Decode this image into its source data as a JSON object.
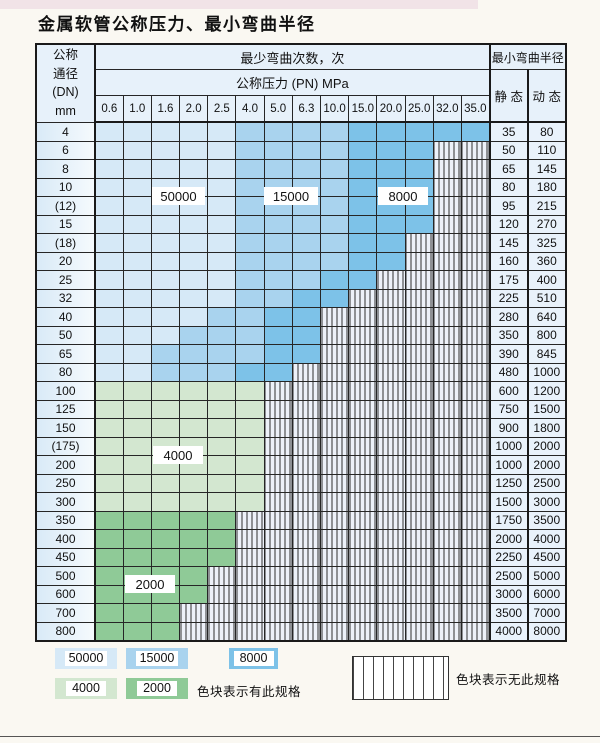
{
  "title": "金属软管公称压力、最小弯曲半径",
  "table": {
    "header": {
      "dn_lines": [
        "公称",
        "通径",
        "(DN)",
        "mm"
      ],
      "bend_cycles_label": "最少弯曲次数，次",
      "pressure_label": "公称压力 (PN) MPa",
      "pressure_columns": [
        "0.6",
        "1.0",
        "1.6",
        "2.0",
        "2.5",
        "4.0",
        "5.0",
        "6.3",
        "10.0",
        "15.0",
        "20.0",
        "25.0",
        "32.0",
        "35.0"
      ],
      "bend_radius_label": "最小弯曲半径",
      "static_label": "静 态",
      "dynamic_label": "动 态"
    },
    "zone_colors": {
      "50000": "#d6e9f7",
      "15000": "#a9d3ee",
      "8000": "#7dc2e8",
      "4000": "#d3e7d0",
      "2000": "#8fca97",
      "none": "#edf1f9"
    },
    "overlay_labels": {
      "50000": "50000",
      "15000": "15000",
      "8000": "8000",
      "4000": "4000",
      "2000": "2000"
    },
    "rows": [
      {
        "dn": "4",
        "zones": [
          "50000",
          "50000",
          "50000",
          "50000",
          "50000",
          "15000",
          "15000",
          "15000",
          "15000",
          "8000",
          "8000",
          "8000",
          "8000",
          "8000"
        ],
        "static": "35",
        "dynamic": "80"
      },
      {
        "dn": "6",
        "zones": [
          "50000",
          "50000",
          "50000",
          "50000",
          "50000",
          "15000",
          "15000",
          "15000",
          "15000",
          "8000",
          "8000",
          "8000",
          "none",
          "none"
        ],
        "static": "50",
        "dynamic": "110"
      },
      {
        "dn": "8",
        "zones": [
          "50000",
          "50000",
          "50000",
          "50000",
          "50000",
          "15000",
          "15000",
          "15000",
          "15000",
          "8000",
          "8000",
          "8000",
          "none",
          "none"
        ],
        "static": "65",
        "dynamic": "145"
      },
      {
        "dn": "10",
        "zones": [
          "50000",
          "50000",
          "50000",
          "50000",
          "50000",
          "15000",
          "15000",
          "15000",
          "15000",
          "8000",
          "8000",
          "8000",
          "none",
          "none"
        ],
        "static": "80",
        "dynamic": "180"
      },
      {
        "dn": "(12)",
        "zones": [
          "50000",
          "50000",
          "50000",
          "50000",
          "50000",
          "15000",
          "15000",
          "15000",
          "15000",
          "8000",
          "8000",
          "8000",
          "none",
          "none"
        ],
        "static": "95",
        "dynamic": "215"
      },
      {
        "dn": "15",
        "zones": [
          "50000",
          "50000",
          "50000",
          "50000",
          "50000",
          "15000",
          "15000",
          "15000",
          "15000",
          "8000",
          "8000",
          "8000",
          "none",
          "none"
        ],
        "static": "120",
        "dynamic": "270"
      },
      {
        "dn": "(18)",
        "zones": [
          "50000",
          "50000",
          "50000",
          "50000",
          "50000",
          "15000",
          "15000",
          "15000",
          "15000",
          "8000",
          "8000",
          "none",
          "none",
          "none"
        ],
        "static": "145",
        "dynamic": "325"
      },
      {
        "dn": "20",
        "zones": [
          "50000",
          "50000",
          "50000",
          "50000",
          "50000",
          "15000",
          "15000",
          "15000",
          "15000",
          "8000",
          "8000",
          "none",
          "none",
          "none"
        ],
        "static": "160",
        "dynamic": "360"
      },
      {
        "dn": "25",
        "zones": [
          "50000",
          "50000",
          "50000",
          "50000",
          "50000",
          "15000",
          "15000",
          "15000",
          "8000",
          "8000",
          "none",
          "none",
          "none",
          "none"
        ],
        "static": "175",
        "dynamic": "400"
      },
      {
        "dn": "32",
        "zones": [
          "50000",
          "50000",
          "50000",
          "50000",
          "50000",
          "15000",
          "15000",
          "8000",
          "8000",
          "none",
          "none",
          "none",
          "none",
          "none"
        ],
        "static": "225",
        "dynamic": "510"
      },
      {
        "dn": "40",
        "zones": [
          "50000",
          "50000",
          "50000",
          "50000",
          "15000",
          "15000",
          "8000",
          "8000",
          "none",
          "none",
          "none",
          "none",
          "none",
          "none"
        ],
        "static": "280",
        "dynamic": "640"
      },
      {
        "dn": "50",
        "zones": [
          "50000",
          "50000",
          "50000",
          "15000",
          "15000",
          "15000",
          "8000",
          "8000",
          "none",
          "none",
          "none",
          "none",
          "none",
          "none"
        ],
        "static": "350",
        "dynamic": "800"
      },
      {
        "dn": "65",
        "zones": [
          "50000",
          "50000",
          "15000",
          "15000",
          "15000",
          "15000",
          "8000",
          "8000",
          "none",
          "none",
          "none",
          "none",
          "none",
          "none"
        ],
        "static": "390",
        "dynamic": "845"
      },
      {
        "dn": "80",
        "zones": [
          "50000",
          "50000",
          "15000",
          "15000",
          "15000",
          "8000",
          "8000",
          "none",
          "none",
          "none",
          "none",
          "none",
          "none",
          "none"
        ],
        "static": "480",
        "dynamic": "1000"
      },
      {
        "dn": "100",
        "zones": [
          "4000",
          "4000",
          "4000",
          "4000",
          "4000",
          "4000",
          "none",
          "none",
          "none",
          "none",
          "none",
          "none",
          "none",
          "none"
        ],
        "static": "600",
        "dynamic": "1200"
      },
      {
        "dn": "125",
        "zones": [
          "4000",
          "4000",
          "4000",
          "4000",
          "4000",
          "4000",
          "none",
          "none",
          "none",
          "none",
          "none",
          "none",
          "none",
          "none"
        ],
        "static": "750",
        "dynamic": "1500"
      },
      {
        "dn": "150",
        "zones": [
          "4000",
          "4000",
          "4000",
          "4000",
          "4000",
          "4000",
          "none",
          "none",
          "none",
          "none",
          "none",
          "none",
          "none",
          "none"
        ],
        "static": "900",
        "dynamic": "1800"
      },
      {
        "dn": "(175)",
        "zones": [
          "4000",
          "4000",
          "4000",
          "4000",
          "4000",
          "4000",
          "none",
          "none",
          "none",
          "none",
          "none",
          "none",
          "none",
          "none"
        ],
        "static": "1000",
        "dynamic": "2000"
      },
      {
        "dn": "200",
        "zones": [
          "4000",
          "4000",
          "4000",
          "4000",
          "4000",
          "4000",
          "none",
          "none",
          "none",
          "none",
          "none",
          "none",
          "none",
          "none"
        ],
        "static": "1000",
        "dynamic": "2000"
      },
      {
        "dn": "250",
        "zones": [
          "4000",
          "4000",
          "4000",
          "4000",
          "4000",
          "4000",
          "none",
          "none",
          "none",
          "none",
          "none",
          "none",
          "none",
          "none"
        ],
        "static": "1250",
        "dynamic": "2500"
      },
      {
        "dn": "300",
        "zones": [
          "4000",
          "4000",
          "4000",
          "4000",
          "4000",
          "4000",
          "none",
          "none",
          "none",
          "none",
          "none",
          "none",
          "none",
          "none"
        ],
        "static": "1500",
        "dynamic": "3000"
      },
      {
        "dn": "350",
        "zones": [
          "2000",
          "2000",
          "2000",
          "2000",
          "2000",
          "none",
          "none",
          "none",
          "none",
          "none",
          "none",
          "none",
          "none",
          "none"
        ],
        "static": "1750",
        "dynamic": "3500"
      },
      {
        "dn": "400",
        "zones": [
          "2000",
          "2000",
          "2000",
          "2000",
          "2000",
          "none",
          "none",
          "none",
          "none",
          "none",
          "none",
          "none",
          "none",
          "none"
        ],
        "static": "2000",
        "dynamic": "4000"
      },
      {
        "dn": "450",
        "zones": [
          "2000",
          "2000",
          "2000",
          "2000",
          "2000",
          "none",
          "none",
          "none",
          "none",
          "none",
          "none",
          "none",
          "none",
          "none"
        ],
        "static": "2250",
        "dynamic": "4500"
      },
      {
        "dn": "500",
        "zones": [
          "2000",
          "2000",
          "2000",
          "2000",
          "none",
          "none",
          "none",
          "none",
          "none",
          "none",
          "none",
          "none",
          "none",
          "none"
        ],
        "static": "2500",
        "dynamic": "5000"
      },
      {
        "dn": "600",
        "zones": [
          "2000",
          "2000",
          "2000",
          "2000",
          "none",
          "none",
          "none",
          "none",
          "none",
          "none",
          "none",
          "none",
          "none",
          "none"
        ],
        "static": "3000",
        "dynamic": "6000"
      },
      {
        "dn": "700",
        "zones": [
          "2000",
          "2000",
          "2000",
          "none",
          "none",
          "none",
          "none",
          "none",
          "none",
          "none",
          "none",
          "none",
          "none",
          "none"
        ],
        "static": "3500",
        "dynamic": "7000"
      },
      {
        "dn": "800",
        "zones": [
          "2000",
          "2000",
          "2000",
          "none",
          "none",
          "none",
          "none",
          "none",
          "none",
          "none",
          "none",
          "none",
          "none",
          "none"
        ],
        "static": "4000",
        "dynamic": "8000"
      }
    ]
  },
  "legend": {
    "items": [
      {
        "value": "50000",
        "zone": "50000"
      },
      {
        "value": "15000",
        "zone": "15000"
      },
      {
        "value": "8000",
        "zone": "8000"
      },
      {
        "value": "4000",
        "zone": "4000"
      },
      {
        "value": "2000",
        "zone": "2000"
      }
    ],
    "has_spec_text": "色块表示有此规格",
    "no_spec_text": "色块表示无此规格"
  }
}
